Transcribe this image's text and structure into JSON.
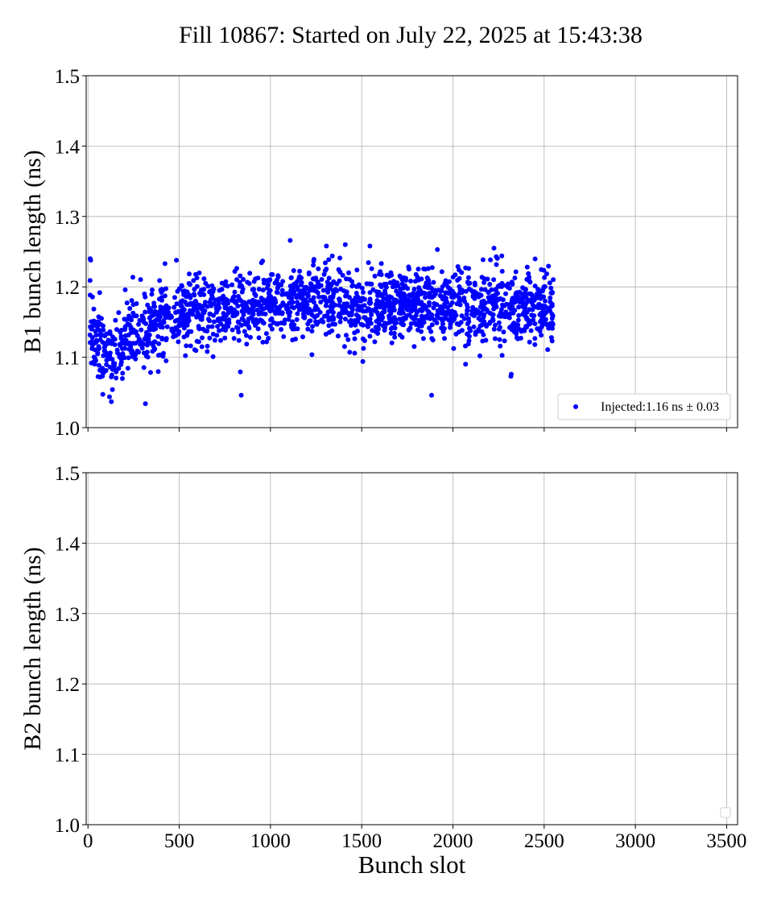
{
  "title": "Fill 10867: Started on July 22, 2025 at 15:43:38",
  "chart_data": [
    {
      "type": "scatter",
      "ylabel": "B1 bunch length (ns)",
      "xlabel": "",
      "xlim": [
        -10,
        3560
      ],
      "ylim": [
        1.0,
        1.5
      ],
      "xticks": [
        0,
        500,
        1000,
        1500,
        2000,
        2500,
        3000,
        3500
      ],
      "xtick_labels": [],
      "yticks": [
        "1.0",
        "1.1",
        "1.2",
        "1.3",
        "1.4",
        "1.5"
      ],
      "grid": true,
      "legend": {
        "placement": "bottom-right",
        "entries": [
          "Injected:1.16 ns ± 0.03"
        ]
      },
      "series": [
        {
          "name": "Injected:1.16 ns ± 0.03",
          "color": "#0000ff",
          "x_range": [
            10,
            2550
          ],
          "count": 1900,
          "band_means": [
            [
              0,
              1.14
            ],
            [
              100,
              1.105
            ],
            [
              200,
              1.125
            ],
            [
              300,
              1.14
            ],
            [
              400,
              1.155
            ],
            [
              500,
              1.16
            ],
            [
              600,
              1.165
            ],
            [
              700,
              1.165
            ],
            [
              800,
              1.165
            ],
            [
              900,
              1.17
            ],
            [
              1000,
              1.18
            ],
            [
              1100,
              1.18
            ],
            [
              1200,
              1.18
            ],
            [
              1300,
              1.18
            ],
            [
              1400,
              1.175
            ],
            [
              1500,
              1.17
            ],
            [
              1600,
              1.175
            ],
            [
              1700,
              1.175
            ],
            [
              1800,
              1.175
            ],
            [
              1900,
              1.18
            ],
            [
              2000,
              1.175
            ],
            [
              2100,
              1.175
            ],
            [
              2200,
              1.175
            ],
            [
              2300,
              1.17
            ],
            [
              2400,
              1.17
            ],
            [
              2550,
              1.17
            ]
          ],
          "sigma": 0.03,
          "outliers": [
            [
              12,
              1.24
            ],
            [
              15,
              1.238
            ],
            [
              128,
              1.037
            ],
            [
              315,
              1.034
            ],
            [
              422,
              1.233
            ],
            [
              840,
              1.046
            ],
            [
              1108,
              1.266
            ],
            [
              1307,
              1.258
            ],
            [
              1410,
              1.26
            ],
            [
              1545,
              1.258
            ],
            [
              1883,
              1.046
            ],
            [
              1915,
              1.253
            ],
            [
              2225,
              1.255
            ],
            [
              2318,
              1.073
            ],
            [
              2320,
              1.076
            ],
            [
              2268,
              1.244
            ]
          ]
        }
      ]
    },
    {
      "type": "scatter",
      "ylabel": "B2 bunch length (ns)",
      "xlabel": "Bunch slot",
      "xlim": [
        -10,
        3560
      ],
      "ylim": [
        1.0,
        1.5
      ],
      "xticks": [
        0,
        500,
        1000,
        1500,
        2000,
        2500,
        3000,
        3500
      ],
      "xtick_labels": [
        "0",
        "500",
        "1000",
        "1500",
        "2000",
        "2500",
        "3000",
        "3500"
      ],
      "yticks": [
        "1.0",
        "1.1",
        "1.2",
        "1.3",
        "1.4",
        "1.5"
      ],
      "grid": true,
      "legend": {
        "placement": "bottom-right",
        "entries": []
      },
      "series": []
    }
  ]
}
